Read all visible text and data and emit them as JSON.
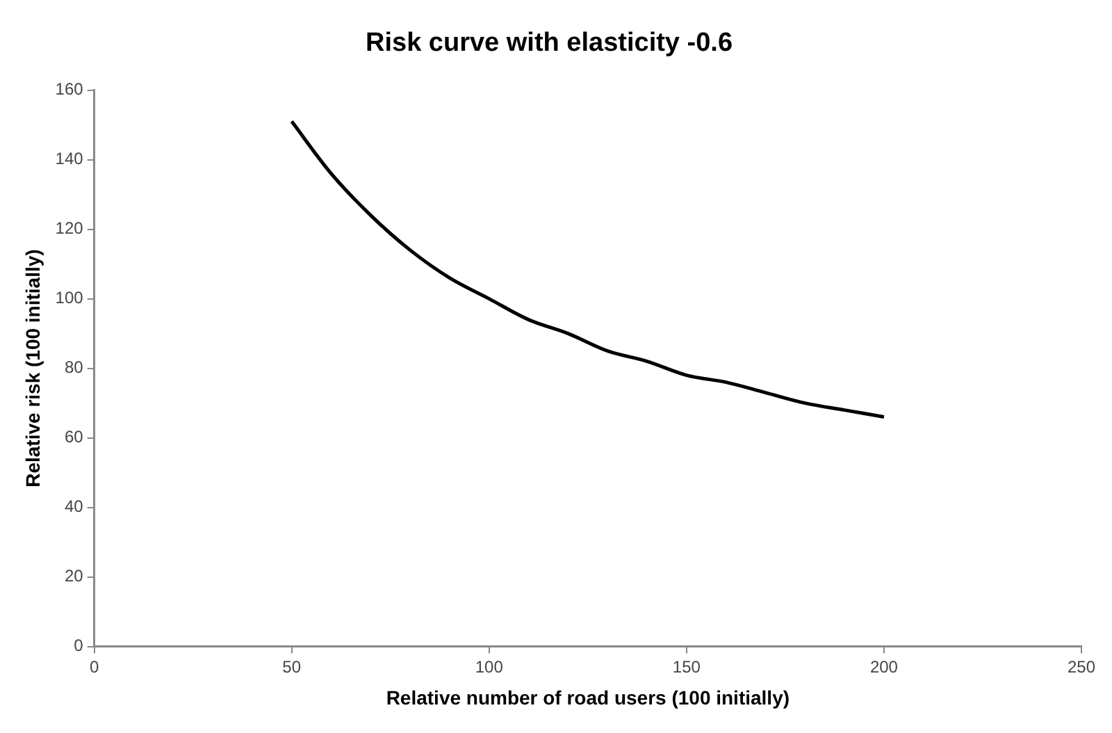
{
  "chart_data": {
    "type": "line",
    "title": "Risk curve with elasticity -0.6",
    "xlabel": "Relative number of road users (100 initially)",
    "ylabel": "Relative risk (100 initially)",
    "x": [
      50,
      60,
      70,
      80,
      90,
      100,
      110,
      120,
      130,
      140,
      150,
      160,
      170,
      180,
      190,
      200
    ],
    "series": [
      {
        "color": "#000000",
        "values": [
          151,
          136,
          124,
          114,
          106,
          100,
          94,
          90,
          85,
          82,
          78,
          76,
          73,
          70,
          68,
          66
        ]
      }
    ],
    "xlim": [
      0,
      250
    ],
    "xticks": [
      0,
      50,
      100,
      150,
      200,
      250
    ],
    "ylim": [
      0,
      160
    ],
    "yticks": [
      0,
      20,
      40,
      60,
      80,
      100,
      120,
      140,
      160
    ],
    "marker": "none",
    "line_style": "solid",
    "legend": false
  }
}
